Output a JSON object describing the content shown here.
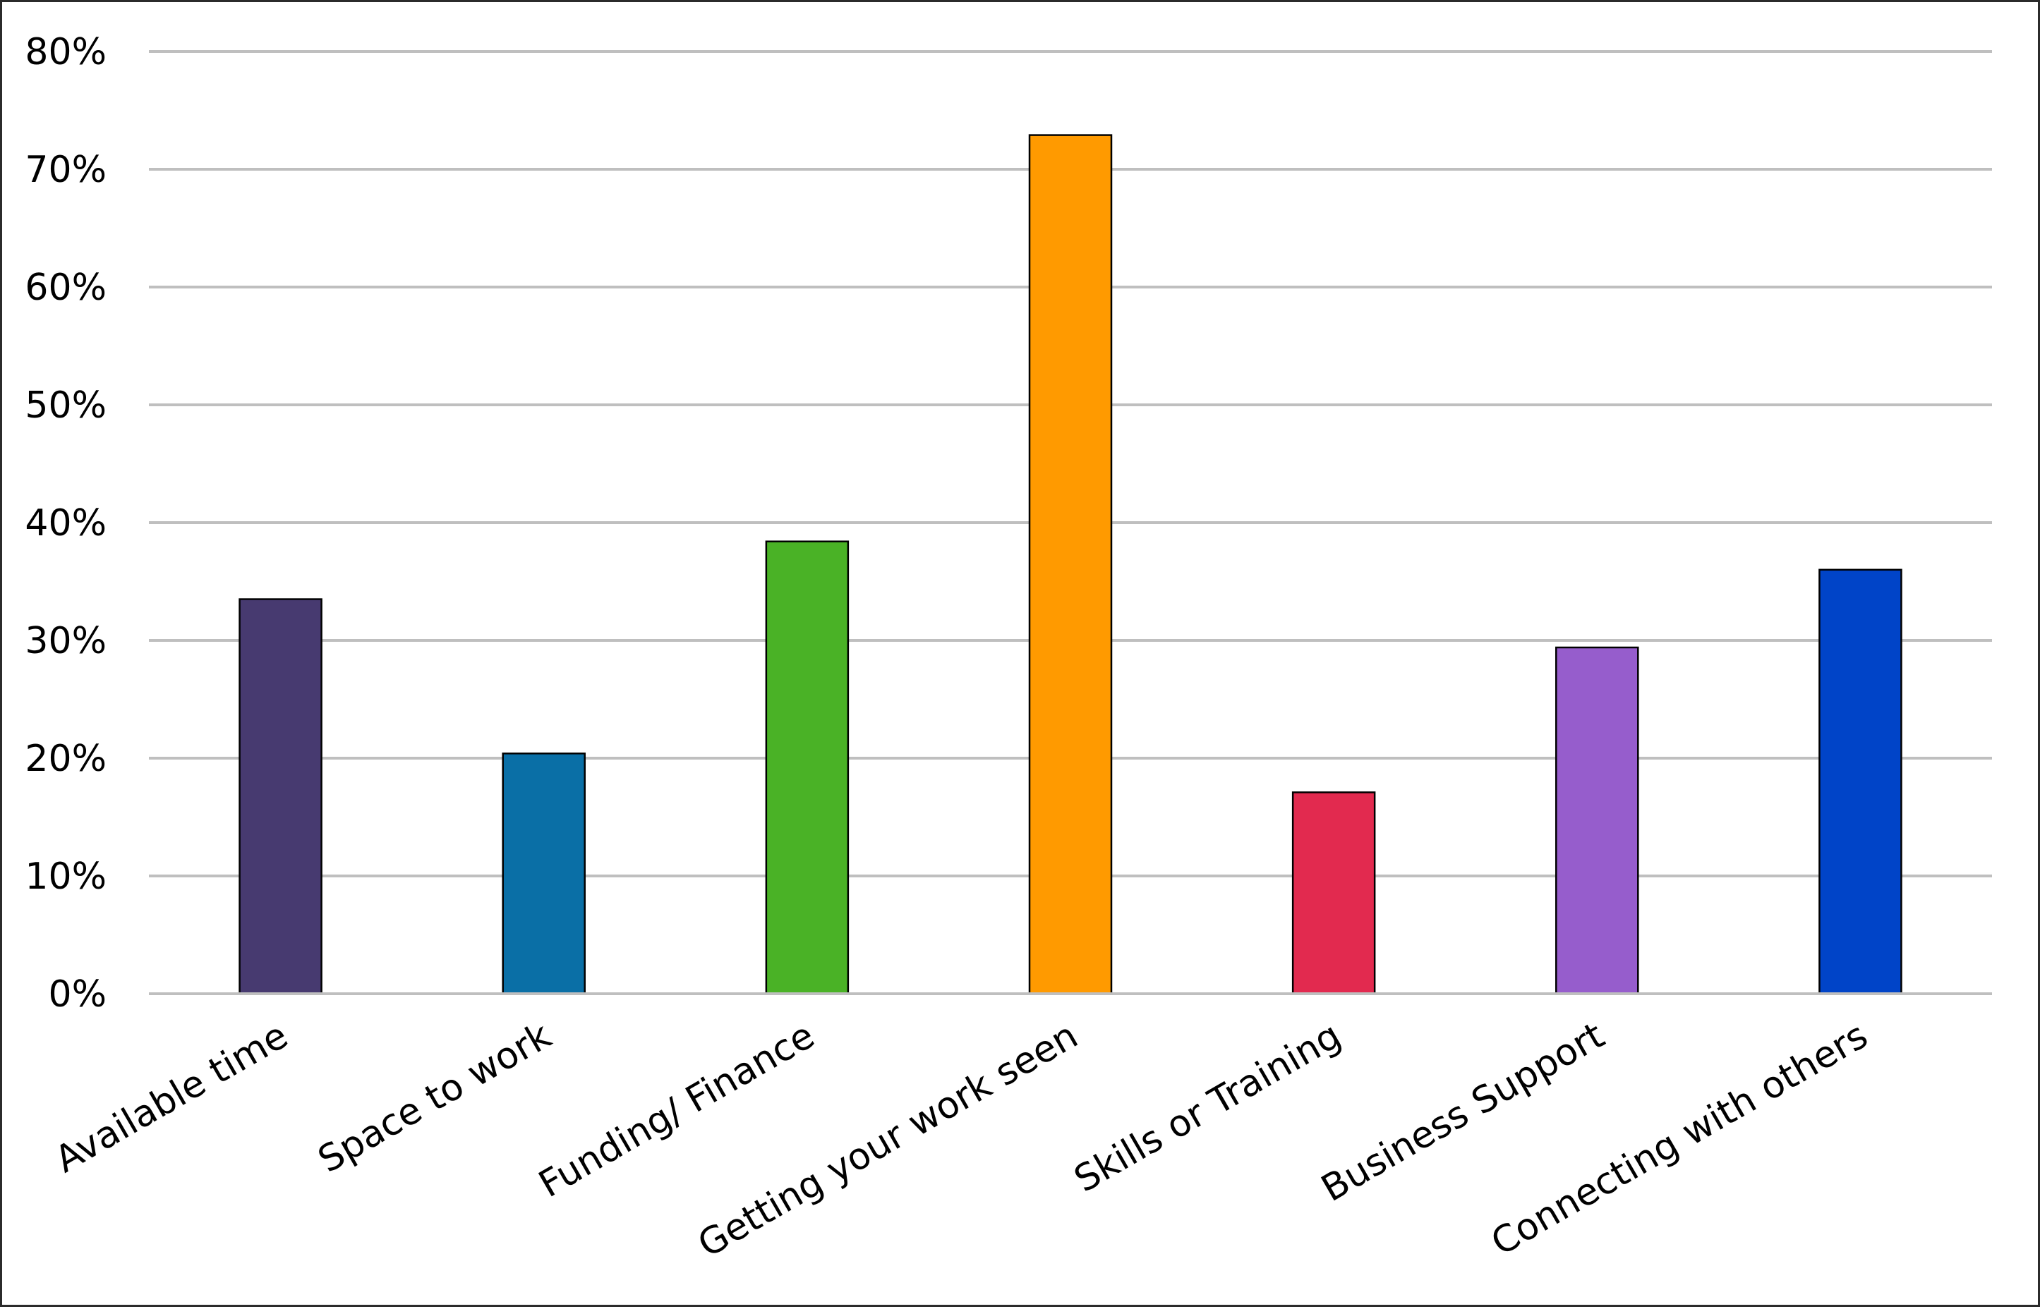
{
  "chart_data": {
    "type": "bar",
    "title": "",
    "xlabel": "",
    "ylabel": "",
    "categories": [
      "Available time",
      "Space to work",
      "Funding/ Finance",
      "Getting your work seen",
      "Skills or Training",
      "Business Support",
      "Connecting with others"
    ],
    "values": [
      33.5,
      20.4,
      38.4,
      72.9,
      17.1,
      29.4,
      36.0
    ],
    "colors": [
      "#473a70",
      "#0a6fa6",
      "#4ab226",
      "#ff9a00",
      "#e22a4f",
      "#965dcc",
      "#0044c8"
    ],
    "ylim": [
      0,
      80
    ],
    "yticks": [
      0,
      10,
      20,
      30,
      40,
      50,
      60,
      70,
      80
    ],
    "ytick_labels": [
      "0%",
      "10%",
      "20%",
      "30%",
      "40%",
      "50%",
      "60%",
      "70%",
      "80%"
    ],
    "grid": true,
    "legend": "none"
  }
}
